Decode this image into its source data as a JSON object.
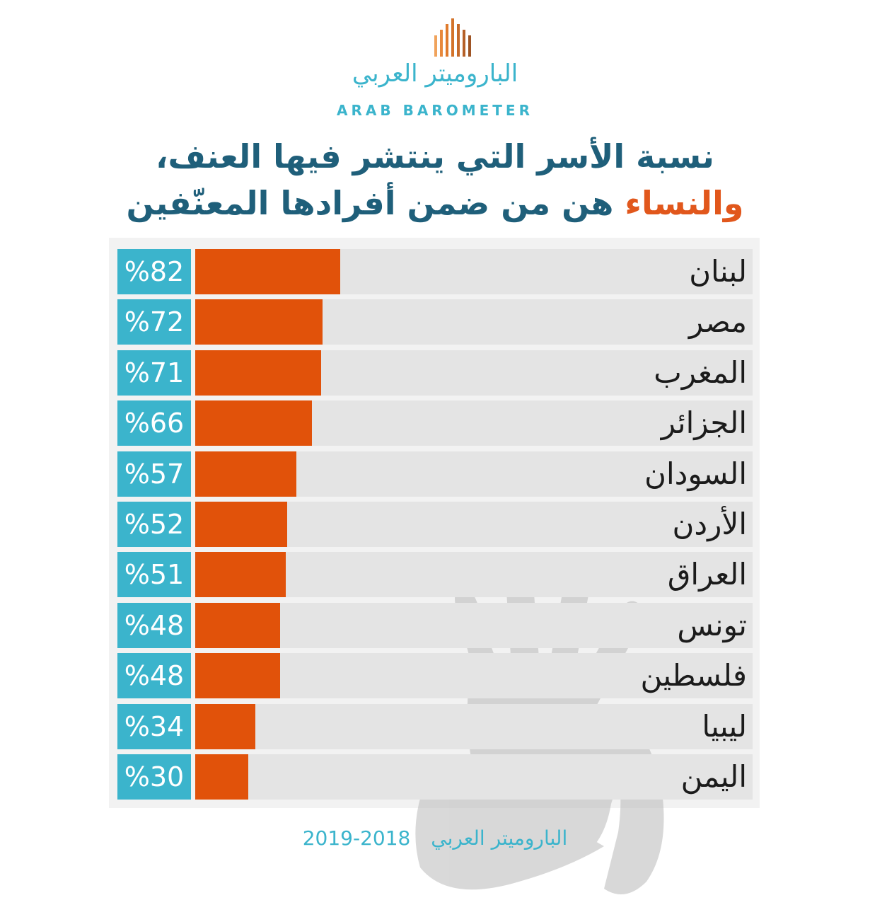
{
  "logo": {
    "arabic": "الباروميتر العربي",
    "english": "ARAB BAROMETER"
  },
  "title": {
    "line1": "نسبة الأسر التي ينتشر فيها العنف،",
    "line2_highlight": "والنساء",
    "line2_rest": "هن من ضمن أفرادها المعنّفين"
  },
  "chart_data": {
    "type": "bar",
    "orientation": "horizontal",
    "categories": [
      "لبنان",
      "مصر",
      "المغرب",
      "الجزائر",
      "السودان",
      "الأردن",
      "العراق",
      "تونس",
      "فلسطين",
      "ليبيا",
      "اليمن"
    ],
    "values": [
      82,
      72,
      71,
      66,
      57,
      52,
      51,
      48,
      48,
      34,
      30
    ],
    "labels": [
      "%82",
      "%72",
      "%71",
      "%66",
      "%57",
      "%52",
      "%51",
      "%48",
      "%48",
      "%34",
      "%30"
    ],
    "unit": "%"
  },
  "colors": {
    "accent_orange": "#e1520a",
    "accent_teal": "#3bb4cc",
    "title_blue": "#1f5f7a"
  },
  "footer": {
    "source": "الباروميتر العربي",
    "years": "2019-2018"
  }
}
